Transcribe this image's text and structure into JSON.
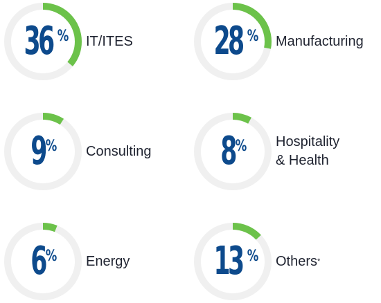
{
  "colors": {
    "track": "#f0f0f0",
    "progress": "#6cc24a",
    "number": "#0d4a8c",
    "text": "#1f2330"
  },
  "chart_data": {
    "type": "pie",
    "title": "",
    "unit": "%",
    "items": [
      {
        "value": 36,
        "label": "IT/ITES"
      },
      {
        "value": 28,
        "label": "Manufacturing"
      },
      {
        "value": 9,
        "label": "Consulting"
      },
      {
        "value": 8,
        "label": "Hospitality\n& Health"
      },
      {
        "value": 6,
        "label": "Energy"
      },
      {
        "value": 13,
        "label": "Others",
        "note": "*"
      }
    ]
  }
}
